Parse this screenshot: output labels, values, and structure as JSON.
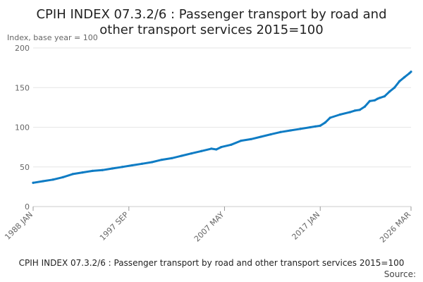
{
  "chart_data": {
    "type": "line",
    "title": "CPIH INDEX 07.3.2/6 : Passenger transport by road and other transport services 2015=100",
    "title_lines": [
      "CPIH INDEX 07.3.2/6 : Passenger transport by road and",
      "other transport services 2015=100"
    ],
    "ylabel": "Index, base year = 100",
    "ylim": [
      0,
      200
    ],
    "yticks": [
      0,
      50,
      100,
      150,
      200
    ],
    "grid": true,
    "xlim": [
      1988.0,
      2026.17
    ],
    "xtick_labels": [
      {
        "label": "1988 JAN",
        "x": 1988.0
      },
      {
        "label": "1997 SEP",
        "x": 1997.67
      },
      {
        "label": "2007 MAY",
        "x": 2007.33
      },
      {
        "label": "2017 JAN",
        "x": 2017.0
      },
      {
        "label": "2026 MAR",
        "x": 2026.17
      }
    ],
    "series": [
      {
        "color": "#0f7cc4",
        "x": [
          1988.0,
          1989.0,
          1990.0,
          1991.0,
          1992.0,
          1993.0,
          1994.0,
          1995.0,
          1996.0,
          1997.0,
          1998.0,
          1999.0,
          2000.0,
          2001.0,
          2002.0,
          2003.0,
          2004.0,
          2005.0,
          2006.0,
          2006.5,
          2007.0,
          2008.0,
          2009.0,
          2010.0,
          2011.0,
          2012.0,
          2013.0,
          2014.0,
          2015.0,
          2016.0,
          2016.5,
          2017.0,
          2017.5,
          2018.0,
          2019.0,
          2020.0,
          2020.5,
          2021.0,
          2021.5,
          2022.0,
          2022.5,
          2022.8,
          2023.0,
          2023.5,
          2024.0,
          2024.5,
          2025.0,
          2025.5,
          2026.0,
          2026.17
        ],
        "values": [
          30,
          32,
          34,
          37,
          41,
          43,
          45,
          46,
          48,
          50,
          52,
          54,
          56,
          59,
          61,
          64,
          67,
          70,
          73,
          72,
          75,
          78,
          83,
          85,
          88,
          91,
          94,
          96,
          98,
          100,
          101,
          102,
          106,
          112,
          116,
          119,
          121,
          122,
          126,
          133,
          134,
          136,
          137,
          139,
          145,
          150,
          158,
          163,
          168,
          170
        ]
      }
    ]
  },
  "footer": {
    "caption": "CPIH INDEX 07.3.2/6 : Passenger transport by road and other transport services 2015=100",
    "source": "Source:"
  }
}
